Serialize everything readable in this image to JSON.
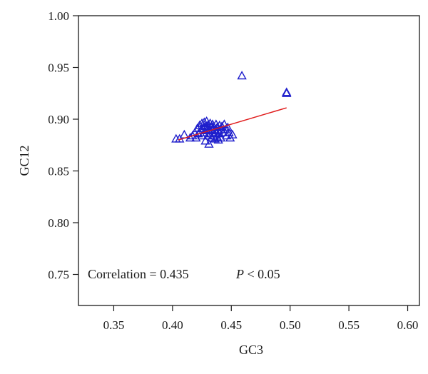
{
  "chart_data": {
    "type": "scatter",
    "title": "",
    "xlabel": "GC3",
    "ylabel": "GC12",
    "xlim": [
      0.32,
      0.61
    ],
    "ylim": [
      0.72,
      1.0
    ],
    "xticks": [
      0.35,
      0.4,
      0.45,
      0.5,
      0.55,
      0.6
    ],
    "yticks": [
      0.75,
      0.8,
      0.85,
      0.9,
      0.95,
      1.0
    ],
    "xtick_labels": [
      "0.35",
      "0.40",
      "0.45",
      "0.50",
      "0.55",
      "0.60"
    ],
    "ytick_labels": [
      "0.75",
      "0.80",
      "0.85",
      "0.90",
      "0.95",
      "1.00"
    ],
    "grid": false,
    "marker": "triangle-open",
    "marker_color": "#1f1fcc",
    "trendline_color": "#e01b1b",
    "trendline": {
      "x": [
        0.405,
        0.497
      ],
      "y": [
        0.88,
        0.911
      ]
    },
    "annotation": {
      "correlation_text": "Correlation = 0.435",
      "p_symbol": "P",
      "p_rest": " < 0.05"
    },
    "points": [
      {
        "x": 0.403,
        "y": 0.881
      },
      {
        "x": 0.406,
        "y": 0.881
      },
      {
        "x": 0.41,
        "y": 0.885
      },
      {
        "x": 0.415,
        "y": 0.882
      },
      {
        "x": 0.417,
        "y": 0.884
      },
      {
        "x": 0.419,
        "y": 0.887
      },
      {
        "x": 0.42,
        "y": 0.882
      },
      {
        "x": 0.421,
        "y": 0.891
      },
      {
        "x": 0.422,
        "y": 0.886
      },
      {
        "x": 0.423,
        "y": 0.894
      },
      {
        "x": 0.424,
        "y": 0.889
      },
      {
        "x": 0.425,
        "y": 0.896
      },
      {
        "x": 0.425,
        "y": 0.884
      },
      {
        "x": 0.426,
        "y": 0.891
      },
      {
        "x": 0.427,
        "y": 0.897
      },
      {
        "x": 0.427,
        "y": 0.887
      },
      {
        "x": 0.428,
        "y": 0.879
      },
      {
        "x": 0.428,
        "y": 0.893
      },
      {
        "x": 0.429,
        "y": 0.889
      },
      {
        "x": 0.429,
        "y": 0.898
      },
      {
        "x": 0.43,
        "y": 0.884
      },
      {
        "x": 0.43,
        "y": 0.894
      },
      {
        "x": 0.431,
        "y": 0.876
      },
      {
        "x": 0.431,
        "y": 0.89
      },
      {
        "x": 0.432,
        "y": 0.896
      },
      {
        "x": 0.432,
        "y": 0.886
      },
      {
        "x": 0.433,
        "y": 0.892
      },
      {
        "x": 0.433,
        "y": 0.882
      },
      {
        "x": 0.434,
        "y": 0.895
      },
      {
        "x": 0.434,
        "y": 0.889
      },
      {
        "x": 0.435,
        "y": 0.884
      },
      {
        "x": 0.435,
        "y": 0.893
      },
      {
        "x": 0.436,
        "y": 0.89
      },
      {
        "x": 0.436,
        "y": 0.881
      },
      {
        "x": 0.437,
        "y": 0.895
      },
      {
        "x": 0.437,
        "y": 0.887
      },
      {
        "x": 0.438,
        "y": 0.892
      },
      {
        "x": 0.438,
        "y": 0.883
      },
      {
        "x": 0.439,
        "y": 0.889
      },
      {
        "x": 0.439,
        "y": 0.88
      },
      {
        "x": 0.44,
        "y": 0.894
      },
      {
        "x": 0.44,
        "y": 0.886
      },
      {
        "x": 0.441,
        "y": 0.89
      },
      {
        "x": 0.441,
        "y": 0.882
      },
      {
        "x": 0.442,
        "y": 0.893
      },
      {
        "x": 0.443,
        "y": 0.887
      },
      {
        "x": 0.444,
        "y": 0.895
      },
      {
        "x": 0.445,
        "y": 0.89
      },
      {
        "x": 0.446,
        "y": 0.884
      },
      {
        "x": 0.447,
        "y": 0.892
      },
      {
        "x": 0.448,
        "y": 0.887
      },
      {
        "x": 0.449,
        "y": 0.882
      },
      {
        "x": 0.451,
        "y": 0.885
      },
      {
        "x": 0.459,
        "y": 0.942
      },
      {
        "x": 0.497,
        "y": 0.925
      },
      {
        "x": 0.497,
        "y": 0.926
      }
    ]
  }
}
